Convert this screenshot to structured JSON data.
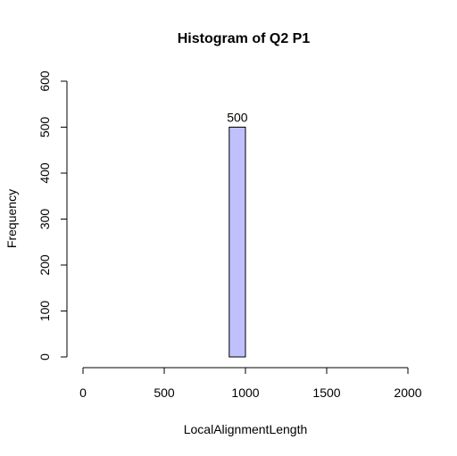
{
  "chart_data": {
    "type": "bar",
    "title": "Histogram of Q2 P1",
    "xlabel": "LocalAlignmentLength",
    "ylabel": "Frequency",
    "xlim": [
      0,
      2000
    ],
    "ylim": [
      0,
      600
    ],
    "xticks": [
      0,
      500,
      1000,
      1500,
      2000
    ],
    "yticks": [
      0,
      100,
      200,
      300,
      400,
      500,
      600
    ],
    "bins": [
      {
        "start": 900,
        "end": 1000,
        "count": 500,
        "label": "500"
      }
    ],
    "bar_fill": "#c0c0ff",
    "bar_stroke": "#000000",
    "grid": false
  }
}
